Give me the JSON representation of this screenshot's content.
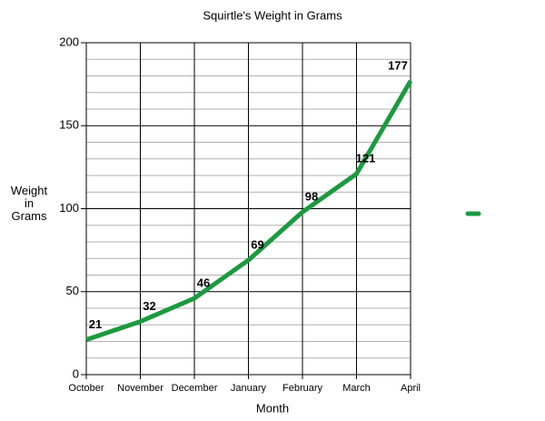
{
  "chart_data": {
    "type": "line",
    "title": "Squirtle's Weight in Grams",
    "x_label": "Month",
    "y_label": "Weight in Grams",
    "categories": [
      "October",
      "November",
      "December",
      "January",
      "February",
      "March",
      "April"
    ],
    "series": [
      {
        "color": "#1c9a3f",
        "values": [
          21,
          32,
          46,
          69,
          98,
          121,
          177
        ]
      }
    ],
    "ylim": [
      0,
      200
    ],
    "yticks": [
      0,
      50,
      100,
      150,
      200
    ],
    "grid": true
  }
}
